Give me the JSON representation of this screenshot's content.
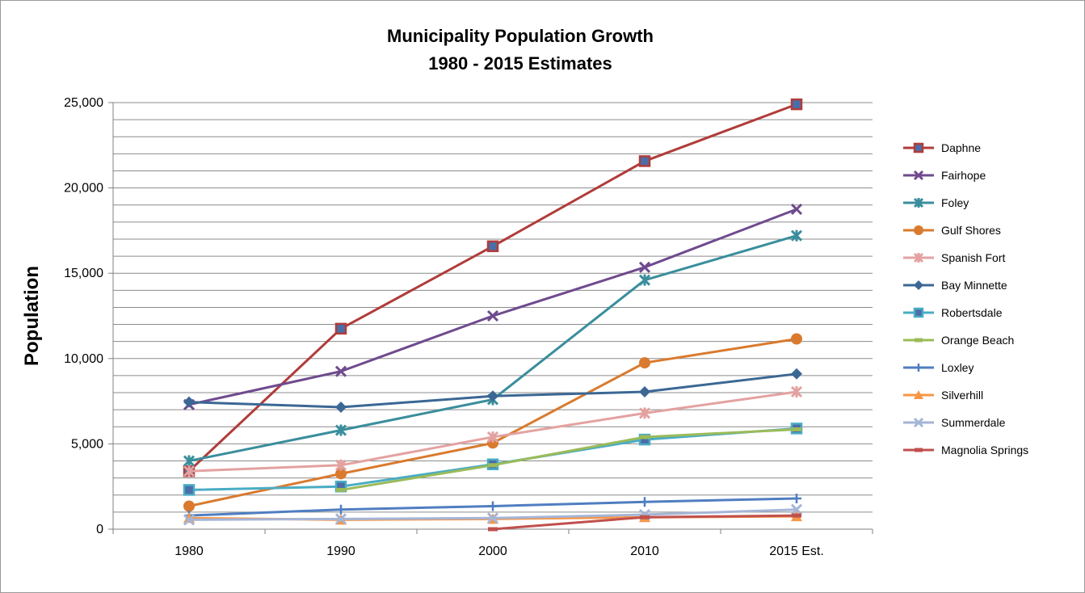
{
  "chart_data": {
    "type": "line",
    "title": "Municipality Population Growth",
    "subtitle": "1980 -  2015 Estimates",
    "xlabel": "",
    "ylabel": "Population",
    "categories": [
      "1980",
      "1990",
      "2000",
      "2010",
      "2015 Est."
    ],
    "y_ticks": [
      "0",
      "5,000",
      "10,000",
      "15,000",
      "20,000",
      "25,000"
    ],
    "ylim": [
      0,
      25000
    ],
    "grid": "horizontal, minor every 1,000",
    "legend_position": "right",
    "series": [
      {
        "name": "Daphne",
        "color": "#B03C3A",
        "marker": "square",
        "values": [
          3400,
          11750,
          16580,
          21570,
          24900
        ]
      },
      {
        "name": "Fairhope",
        "color": "#6F4A8E",
        "marker": "x",
        "values": [
          7300,
          9250,
          12500,
          15350,
          18750
        ]
      },
      {
        "name": "Foley",
        "color": "#3A8E9C",
        "marker": "star",
        "values": [
          4000,
          5800,
          7600,
          14600,
          17200
        ]
      },
      {
        "name": "Gulf Shores",
        "color": "#D97A2E",
        "marker": "circle",
        "values": [
          1350,
          3250,
          5050,
          9750,
          11150
        ]
      },
      {
        "name": "Spanish Fort",
        "color": "#E3A2A0",
        "marker": "star",
        "values": [
          3400,
          3750,
          5400,
          6800,
          8050
        ]
      },
      {
        "name": "Bay Minnette",
        "color": "#3B6794",
        "marker": "diamond",
        "values": [
          7450,
          7150,
          7800,
          8050,
          9100
        ]
      },
      {
        "name": "Robertsdale",
        "color": "#4AACC5",
        "marker": "square",
        "values": [
          2300,
          2500,
          3800,
          5250,
          5900
        ]
      },
      {
        "name": "Orange Beach",
        "color": "#9BBB59",
        "marker": "dash",
        "values": [
          null,
          2300,
          3750,
          5400,
          5850
        ]
      },
      {
        "name": "Loxley",
        "color": "#4F7EC1",
        "marker": "plus",
        "values": [
          800,
          1150,
          1350,
          1600,
          1800
        ]
      },
      {
        "name": "Silverhill",
        "color": "#F79646",
        "marker": "triangle",
        "values": [
          650,
          550,
          600,
          700,
          750
        ]
      },
      {
        "name": "Summerdale",
        "color": "#A5B5D6",
        "marker": "x",
        "values": [
          550,
          600,
          650,
          850,
          1150
        ]
      },
      {
        "name": "Magnolia Springs",
        "color": "#C0504D",
        "marker": "dash",
        "values": [
          null,
          null,
          0,
          700,
          800
        ]
      }
    ]
  }
}
